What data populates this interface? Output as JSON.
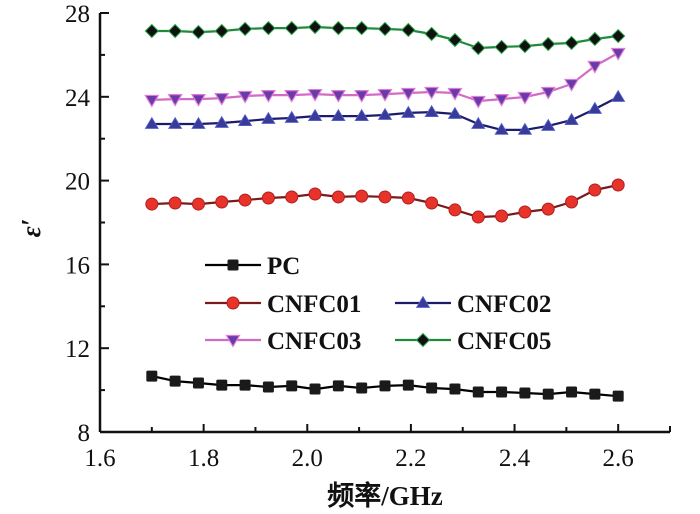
{
  "chart_data": {
    "type": "line",
    "title": "",
    "xlabel": "频率/GHz",
    "ylabel": "ε′",
    "xlim": [
      1.6,
      2.7
    ],
    "ylim": [
      8,
      28
    ],
    "xticks": [
      1.6,
      1.8,
      2.0,
      2.2,
      2.4,
      2.6
    ],
    "xtick_labels": [
      "1.6",
      "1.8",
      "2.0",
      "2.2",
      "2.4",
      "2.6"
    ],
    "yticks": [
      8,
      12,
      16,
      20,
      24,
      28
    ],
    "ytick_labels": [
      "8",
      "12",
      "16",
      "20",
      "24",
      "28"
    ],
    "grid": false,
    "legend_position": "center-left",
    "x": [
      1.7,
      1.745,
      1.79,
      1.835,
      1.88,
      1.925,
      1.97,
      2.015,
      2.06,
      2.105,
      2.15,
      2.195,
      2.24,
      2.285,
      2.33,
      2.375,
      2.42,
      2.465,
      2.51,
      2.555,
      2.6
    ],
    "series": [
      {
        "name": "PC",
        "color": "#1a1a1a",
        "line_color": "#000000",
        "marker": "square",
        "values": [
          10.67,
          10.43,
          10.34,
          10.24,
          10.24,
          10.15,
          10.2,
          10.05,
          10.2,
          10.1,
          10.2,
          10.24,
          10.1,
          10.05,
          9.91,
          9.91,
          9.86,
          9.81,
          9.91,
          9.81,
          9.71
        ]
      },
      {
        "name": "CNFC01",
        "color": "#e8332a",
        "line_color": "#7a1a1a",
        "marker": "circle",
        "values": [
          18.88,
          18.93,
          18.88,
          18.98,
          19.07,
          19.17,
          19.22,
          19.36,
          19.22,
          19.26,
          19.22,
          19.17,
          18.93,
          18.6,
          18.26,
          18.31,
          18.5,
          18.64,
          18.98,
          19.55,
          19.79
        ]
      },
      {
        "name": "CNFC02",
        "color": "#3a3a9a",
        "line_color": "#1c1c6e",
        "marker": "triangle-up",
        "values": [
          22.7,
          22.7,
          22.7,
          22.75,
          22.84,
          22.94,
          22.99,
          23.08,
          23.08,
          23.08,
          23.13,
          23.23,
          23.27,
          23.18,
          22.7,
          22.42,
          22.42,
          22.61,
          22.89,
          23.42,
          23.99
        ]
      },
      {
        "name": "CNFC03",
        "color": "#6a3aa8",
        "line_color": "#d36bc6",
        "marker": "triangle-down",
        "values": [
          23.85,
          23.89,
          23.89,
          23.94,
          24.04,
          24.08,
          24.08,
          24.13,
          24.08,
          24.08,
          24.13,
          24.18,
          24.23,
          24.18,
          23.8,
          23.89,
          23.99,
          24.23,
          24.61,
          25.47,
          26.09
        ]
      },
      {
        "name": "CNFC05",
        "color": "#111111",
        "line_color": "#1f8a3a",
        "marker": "diamond",
        "values": [
          27.14,
          27.14,
          27.09,
          27.14,
          27.24,
          27.28,
          27.28,
          27.33,
          27.28,
          27.28,
          27.24,
          27.19,
          27.0,
          26.71,
          26.33,
          26.38,
          26.42,
          26.52,
          26.57,
          26.76,
          26.9
        ]
      }
    ],
    "legend": {
      "entries": [
        "PC",
        "CNFC01",
        "CNFC02",
        "CNFC03",
        "CNFC05"
      ],
      "layout": [
        [
          "PC"
        ],
        [
          "CNFC01",
          "CNFC02"
        ],
        [
          "CNFC03",
          "CNFC05"
        ]
      ]
    }
  }
}
